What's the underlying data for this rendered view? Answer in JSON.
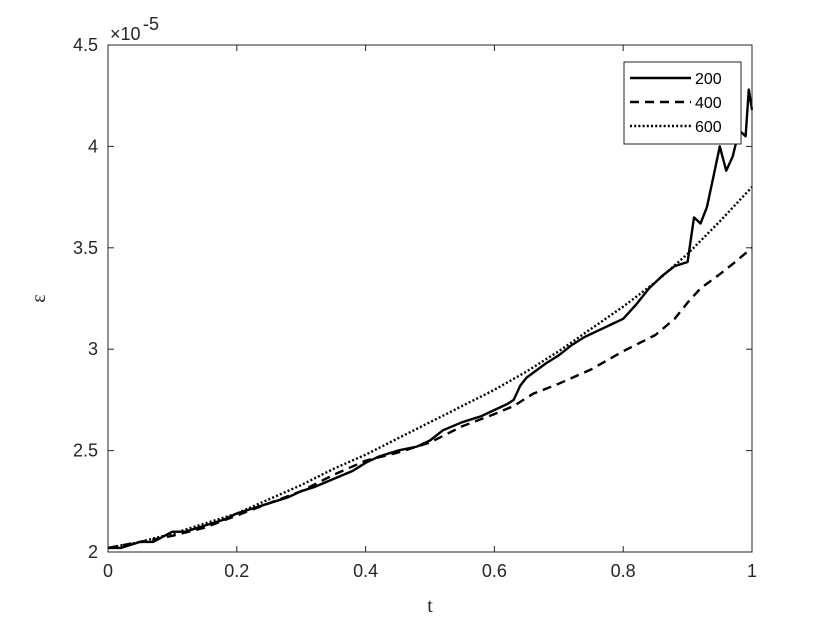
{
  "chart_data": {
    "type": "line",
    "xlabel": "t",
    "ylabel": "ε",
    "y_exponent_base": "×10",
    "y_exponent_power": "-5",
    "xlim": [
      0,
      1
    ],
    "ylim": [
      2.0,
      4.5
    ],
    "x_ticks": [
      0,
      0.2,
      0.4,
      0.6,
      0.8,
      1
    ],
    "x_tick_labels": [
      "0",
      "0.2",
      "0.4",
      "0.6",
      "0.8",
      "1"
    ],
    "y_ticks": [
      2,
      2.5,
      3,
      3.5,
      4,
      4.5
    ],
    "y_tick_labels": [
      "2",
      "2.5",
      "3",
      "3.5",
      "4",
      "4.5"
    ],
    "legend_position": "top-right",
    "grid": false,
    "series": [
      {
        "name": "200",
        "style": "solid",
        "x": [
          0,
          0.02,
          0.05,
          0.07,
          0.1,
          0.12,
          0.15,
          0.18,
          0.2,
          0.22,
          0.25,
          0.28,
          0.3,
          0.32,
          0.35,
          0.38,
          0.4,
          0.42,
          0.45,
          0.48,
          0.5,
          0.52,
          0.55,
          0.58,
          0.6,
          0.62,
          0.63,
          0.64,
          0.65,
          0.68,
          0.7,
          0.72,
          0.74,
          0.76,
          0.78,
          0.8,
          0.82,
          0.84,
          0.86,
          0.88,
          0.9,
          0.91,
          0.92,
          0.93,
          0.94,
          0.95,
          0.96,
          0.97,
          0.98,
          0.99,
          0.995,
          1.0
        ],
        "values": [
          2.02,
          2.02,
          2.05,
          2.05,
          2.1,
          2.1,
          2.13,
          2.16,
          2.19,
          2.21,
          2.24,
          2.27,
          2.3,
          2.32,
          2.36,
          2.4,
          2.44,
          2.47,
          2.5,
          2.52,
          2.55,
          2.6,
          2.64,
          2.67,
          2.7,
          2.73,
          2.75,
          2.82,
          2.86,
          2.93,
          2.97,
          3.02,
          3.06,
          3.09,
          3.12,
          3.15,
          3.22,
          3.3,
          3.36,
          3.41,
          3.43,
          3.65,
          3.62,
          3.7,
          3.85,
          4.0,
          3.88,
          3.95,
          4.08,
          4.05,
          4.28,
          4.18
        ]
      },
      {
        "name": "400",
        "style": "dashed",
        "x": [
          0,
          0.05,
          0.1,
          0.15,
          0.2,
          0.25,
          0.3,
          0.35,
          0.4,
          0.45,
          0.5,
          0.55,
          0.6,
          0.63,
          0.66,
          0.7,
          0.75,
          0.8,
          0.85,
          0.88,
          0.9,
          0.92,
          0.95,
          0.97,
          1.0
        ],
        "values": [
          2.02,
          2.05,
          2.08,
          2.12,
          2.18,
          2.24,
          2.3,
          2.38,
          2.45,
          2.49,
          2.54,
          2.62,
          2.68,
          2.72,
          2.78,
          2.83,
          2.9,
          2.99,
          3.07,
          3.15,
          3.23,
          3.3,
          3.37,
          3.42,
          3.5
        ]
      },
      {
        "name": "600",
        "style": "dotted",
        "x": [
          0,
          0.05,
          0.1,
          0.15,
          0.2,
          0.25,
          0.3,
          0.35,
          0.4,
          0.45,
          0.5,
          0.55,
          0.6,
          0.65,
          0.7,
          0.75,
          0.8,
          0.85,
          0.9,
          0.95,
          1.0
        ],
        "values": [
          2.02,
          2.05,
          2.09,
          2.14,
          2.19,
          2.26,
          2.33,
          2.41,
          2.48,
          2.56,
          2.64,
          2.72,
          2.8,
          2.89,
          2.99,
          3.1,
          3.21,
          3.33,
          3.47,
          3.63,
          3.8
        ]
      }
    ]
  }
}
